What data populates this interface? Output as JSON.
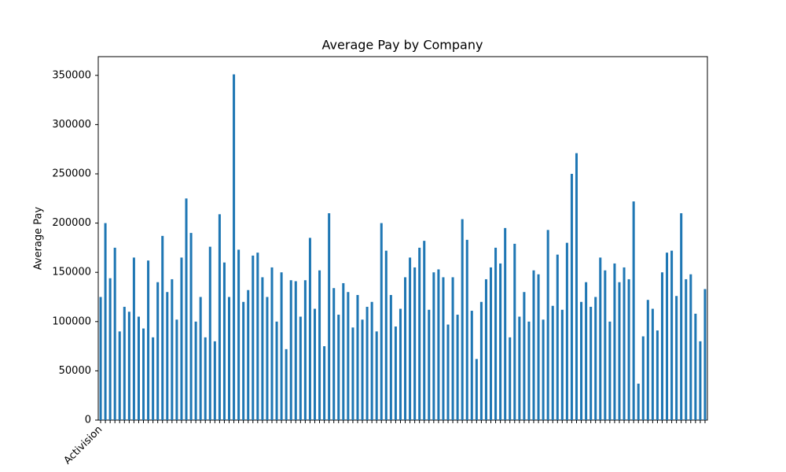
{
  "chart_data": {
    "type": "bar",
    "title": "Average Pay by Company",
    "ylabel": "Average Pay",
    "color": "#1f77b4",
    "categories": [
      "Activision",
      null,
      null,
      null,
      null,
      null,
      null,
      null,
      null,
      null,
      null,
      null,
      null,
      null,
      null,
      null,
      null,
      null,
      null,
      null,
      null,
      null,
      null,
      null,
      null,
      null,
      null,
      null,
      null,
      null,
      null,
      null,
      null,
      null,
      null,
      null,
      null,
      null,
      null,
      null,
      null,
      null,
      null,
      null,
      null,
      null,
      null,
      null,
      null,
      null,
      null,
      null,
      null,
      null,
      null,
      null,
      null,
      null,
      null,
      null,
      null,
      null,
      null,
      null,
      null,
      null,
      null,
      null,
      null,
      null,
      null,
      null,
      null,
      null,
      null,
      null,
      null,
      null,
      null,
      null,
      null,
      null,
      null,
      null,
      null,
      null,
      null,
      null,
      null,
      null,
      null,
      null,
      null,
      null,
      null,
      null,
      null,
      null,
      null,
      null,
      null,
      null,
      null,
      null,
      null,
      null,
      null,
      null,
      null,
      null,
      null,
      null,
      null,
      null,
      null,
      null,
      null,
      null,
      null,
      null,
      null,
      null,
      null,
      null,
      null,
      null,
      null,
      null
    ],
    "values": [
      125000,
      200000,
      144000,
      175000,
      90000,
      115000,
      110000,
      165000,
      105000,
      93000,
      162000,
      84000,
      140000,
      187000,
      130000,
      143000,
      102000,
      165000,
      225000,
      190000,
      100000,
      125000,
      84000,
      176000,
      80000,
      209000,
      160000,
      125000,
      351000,
      173000,
      120000,
      132000,
      167000,
      170000,
      145000,
      125000,
      155000,
      100000,
      150000,
      72000,
      142000,
      141000,
      105000,
      142000,
      185000,
      113000,
      152000,
      75000,
      210000,
      134000,
      107000,
      139000,
      130000,
      94000,
      127000,
      102000,
      115000,
      120000,
      90000,
      200000,
      172000,
      127000,
      95000,
      113000,
      145000,
      165000,
      155000,
      175000,
      182000,
      112000,
      150000,
      153000,
      145000,
      97000,
      145000,
      107000,
      204000,
      183000,
      111000,
      62000,
      120000,
      143000,
      155000,
      175000,
      159000,
      195000,
      84000,
      179000,
      105000,
      130000,
      100000,
      152000,
      148000,
      102000,
      193000,
      116000,
      168000,
      112000,
      180000,
      250000,
      271000,
      120000,
      140000,
      115000,
      125000,
      165000,
      152000,
      100000,
      159000,
      140000,
      155000,
      143000,
      222000,
      37000,
      85000,
      122000,
      113000,
      91000,
      150000,
      170000,
      172000,
      126000,
      210000,
      143000,
      148000,
      108000,
      80000,
      133000
    ],
    "ylim": [
      0,
      369000
    ],
    "yticks": [
      0,
      50000,
      100000,
      150000,
      200000,
      250000,
      300000,
      350000
    ],
    "grid": false
  }
}
